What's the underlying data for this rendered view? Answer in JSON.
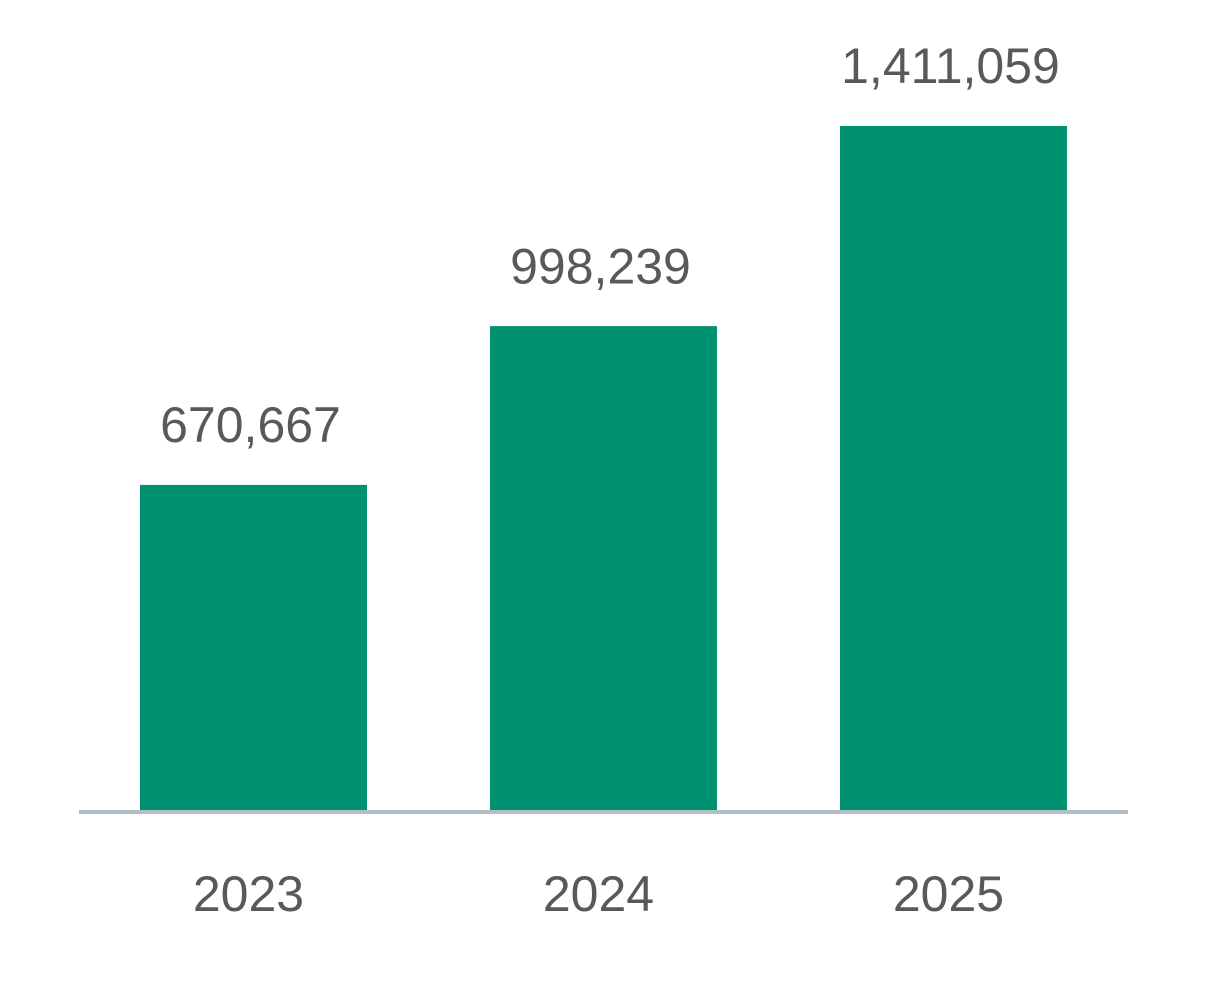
{
  "chart_data": {
    "type": "bar",
    "categories": [
      "2023",
      "2024",
      "2025"
    ],
    "values": [
      670667,
      998239,
      1411059
    ],
    "value_labels": [
      "670,667",
      "998,239",
      "1,411,059"
    ],
    "color": "#009170"
  }
}
